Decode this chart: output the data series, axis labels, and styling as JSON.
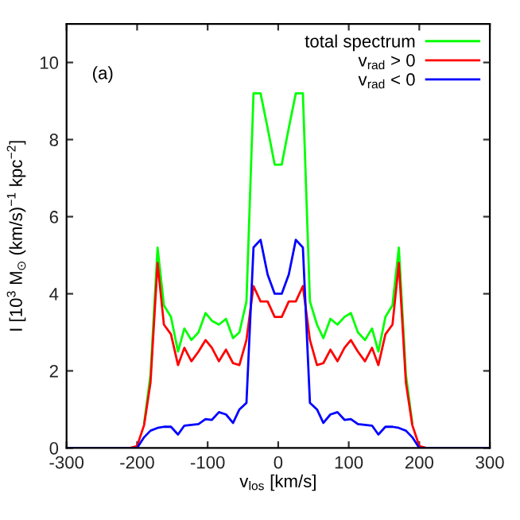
{
  "chart_data": {
    "type": "line",
    "xlabel": "v$_{los}$ [km/s]",
    "ylabel": "I [10$^{3}$ M$_{⊙}$ (km/s)$^{−1}$ kpc$^{−2}$]",
    "annotations": [
      "(a)"
    ],
    "x": [
      -300,
      -210,
      -200,
      -190,
      -181,
      -171,
      -162,
      -152,
      -142,
      -133,
      -123,
      -113,
      -103,
      -94,
      -84,
      -74,
      -64,
      -55,
      -45,
      -35,
      -25,
      -15,
      -5,
      5,
      15,
      25,
      35,
      45,
      55,
      64,
      74,
      84,
      94,
      103,
      113,
      123,
      133,
      142,
      152,
      162,
      171,
      181,
      190,
      200,
      210,
      300
    ],
    "series": [
      {
        "name": "total spectrum",
        "color": "#00ff00",
        "values": [
          null,
          null,
          null,
          0.65,
          1.9,
          5.2,
          3.7,
          3.4,
          2.5,
          3.1,
          2.8,
          3.0,
          3.5,
          3.3,
          3.2,
          3.35,
          2.85,
          3.0,
          3.8,
          9.2,
          9.2,
          8.3,
          7.35,
          7.35,
          8.3,
          9.2,
          9.2,
          3.8,
          3.2,
          2.85,
          3.35,
          3.2,
          3.4,
          3.5,
          3.0,
          2.8,
          3.1,
          2.5,
          3.4,
          3.7,
          5.2,
          1.9,
          0.65,
          null,
          null,
          null
        ]
      },
      {
        "name": "v$_{rad}$ > 0",
        "color": "#ff0000",
        "values": [
          0,
          0,
          0.05,
          0.6,
          1.7,
          4.8,
          3.2,
          2.95,
          2.15,
          2.6,
          2.25,
          2.5,
          2.8,
          2.6,
          2.25,
          2.55,
          2.2,
          2.15,
          2.8,
          4.2,
          3.8,
          3.8,
          3.4,
          3.4,
          3.8,
          3.8,
          4.2,
          2.8,
          2.15,
          2.2,
          2.55,
          2.25,
          2.6,
          2.8,
          2.5,
          2.25,
          2.6,
          2.15,
          2.95,
          3.2,
          4.8,
          1.7,
          0.6,
          0.05,
          0,
          0
        ]
      },
      {
        "name": "v$_{rad}$ < 0",
        "color": "#0000ff",
        "values": [
          0,
          0,
          0,
          0.28,
          0.45,
          0.52,
          0.55,
          0.55,
          0.35,
          0.58,
          0.6,
          0.62,
          0.75,
          0.73,
          0.93,
          0.87,
          0.65,
          1.0,
          1.17,
          5.2,
          5.4,
          4.5,
          4.0,
          4.0,
          4.5,
          5.4,
          5.2,
          1.17,
          1.0,
          0.65,
          0.87,
          0.93,
          0.73,
          0.75,
          0.62,
          0.6,
          0.58,
          0.35,
          0.55,
          0.55,
          0.52,
          0.45,
          0.28,
          0,
          0,
          0
        ]
      }
    ],
    "xlim": [
      -300,
      300
    ],
    "xticks": [
      -300,
      -200,
      -100,
      0,
      100,
      200,
      300
    ],
    "ylim": [
      0,
      11
    ],
    "yticks": [
      0,
      2,
      4,
      6,
      8,
      10
    ],
    "legend": "top right",
    "grid": false,
    "marker": "none",
    "line_style": "solid"
  }
}
